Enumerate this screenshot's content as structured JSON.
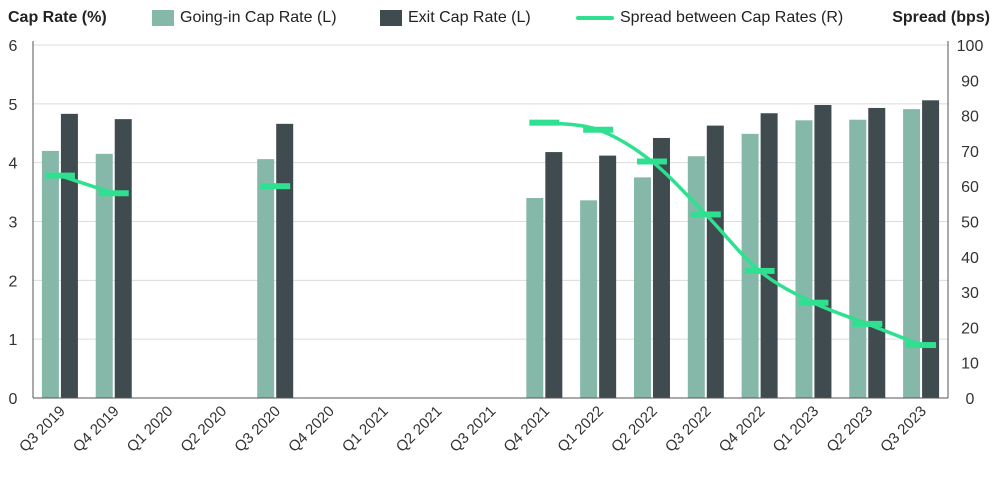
{
  "chart_data": {
    "type": "bar",
    "categories": [
      "Q3 2019",
      "Q4 2019",
      "Q1 2020",
      "Q2 2020",
      "Q3 2020",
      "Q4 2020",
      "Q1 2021",
      "Q2 2021",
      "Q3 2021",
      "Q4 2021",
      "Q1 2022",
      "Q2 2022",
      "Q3 2022",
      "Q4 2022",
      "Q1 2023",
      "Q2 2023",
      "Q3 2023"
    ],
    "ylabel_left": "Cap Rate (%)",
    "ylabel_right": "Spread (bps)",
    "ylim_left": [
      0,
      6
    ],
    "ylim_right": [
      0,
      100
    ],
    "yticks_left": [
      0,
      1,
      2,
      3,
      4,
      5,
      6
    ],
    "yticks_right": [
      0,
      10,
      20,
      30,
      40,
      50,
      60,
      70,
      80,
      90,
      100
    ],
    "grid": true,
    "legend_position": "top",
    "series": [
      {
        "name": "Going-in Cap Rate (L)",
        "kind": "bar",
        "axis": "left",
        "color": "#86b8aa",
        "values": [
          4.2,
          4.15,
          null,
          null,
          4.06,
          null,
          null,
          null,
          null,
          3.4,
          3.36,
          3.75,
          4.11,
          4.49,
          4.72,
          4.73,
          4.91
        ]
      },
      {
        "name": "Exit Cap Rate (L)",
        "kind": "bar",
        "axis": "left",
        "color": "#3f4b4f",
        "values": [
          4.83,
          4.74,
          null,
          null,
          4.66,
          null,
          null,
          null,
          null,
          4.18,
          4.12,
          4.42,
          4.63,
          4.84,
          4.98,
          4.93,
          5.06
        ]
      },
      {
        "name": "Spread between Cap Rates (R)",
        "kind": "line",
        "axis": "right",
        "color": "#2ee08f",
        "values": [
          63,
          58,
          null,
          null,
          60,
          null,
          null,
          null,
          null,
          78,
          76,
          67,
          52,
          36,
          27,
          21,
          15
        ]
      }
    ]
  }
}
